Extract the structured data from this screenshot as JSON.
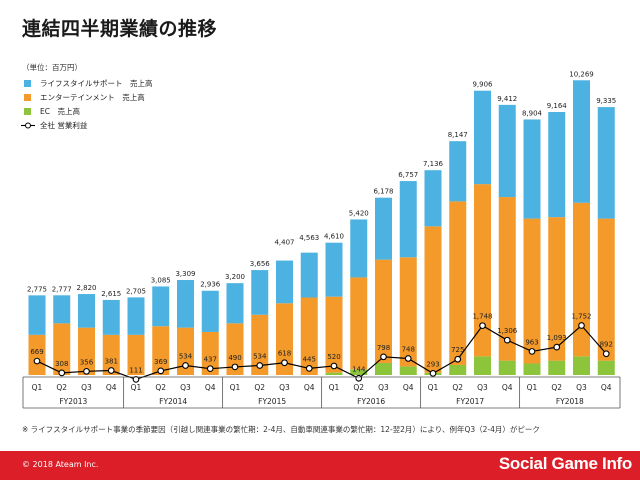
{
  "title": "連結四半期業績の推移",
  "footnote": "※ ライフスタイルサポート事業の季節要因（引越し関連事業の繁忙期：2-4月、自動車関連事業の繁忙期：12-翌2月）により、例年Q3（2-4月）がピーク",
  "copyright": "© 2018 Ateam Inc.",
  "watermark": "Social Game Info",
  "chart_data": {
    "type": "bar",
    "subtype": "stacked bar with line overlay",
    "unit_label": "（単位：百万円）",
    "categories": [
      "Q1",
      "Q2",
      "Q3",
      "Q4",
      "Q1",
      "Q2",
      "Q3",
      "Q4",
      "Q1",
      "Q2",
      "Q3",
      "Q4",
      "Q1",
      "Q2",
      "Q3",
      "Q4",
      "Q1",
      "Q2",
      "Q3",
      "Q4",
      "Q1",
      "Q2",
      "Q3",
      "Q4"
    ],
    "fiscal_years": [
      {
        "label": "FY2013",
        "start": 0,
        "count": 4
      },
      {
        "label": "FY2014",
        "start": 4,
        "count": 4
      },
      {
        "label": "FY2015",
        "start": 8,
        "count": 4
      },
      {
        "label": "FY2016",
        "start": 12,
        "count": 4
      },
      {
        "label": "FY2017",
        "start": 16,
        "count": 4
      },
      {
        "label": "FY2018",
        "start": 20,
        "count": 4
      }
    ],
    "totals": [
      2775,
      2777,
      2820,
      2615,
      2705,
      3085,
      3309,
      2936,
      3200,
      3656,
      4407,
      4563,
      4610,
      5420,
      6178,
      6757,
      7136,
      8147,
      9906,
      9412,
      8904,
      9164,
      10269,
      9335
    ],
    "total_labels": [
      "2,775",
      "2,777",
      "2,820",
      "2,615",
      "2,705",
      "3,085",
      "3,309",
      "2,936",
      "3,200",
      "3,656",
      "4,407",
      "4,563",
      "4,610",
      "5,420",
      "6,178",
      "6,757",
      "7,136",
      "8,147",
      "9,906",
      "9,412",
      "8,904",
      "9,164",
      "10,269",
      "9,335"
    ],
    "series": [
      {
        "name": "EC　売上高",
        "type": "bar",
        "color": "#8cc43c",
        "values": [
          0,
          0,
          0,
          0,
          0,
          0,
          0,
          0,
          0,
          0,
          0,
          0,
          80,
          200,
          420,
          300,
          80,
          350,
          650,
          500,
          400,
          500,
          650,
          500
        ]
      },
      {
        "name": "エンターテインメント　売上高",
        "type": "bar",
        "color": "#f39a2b",
        "values": [
          1400,
          1800,
          1650,
          1400,
          1400,
          1700,
          1650,
          1500,
          1800,
          2100,
          2500,
          2700,
          2650,
          3200,
          3600,
          3800,
          5100,
          5700,
          6000,
          5700,
          5050,
          5000,
          5350,
          4950
        ]
      },
      {
        "name": "ライフスタイルサポート　売上高",
        "type": "bar",
        "color": "#4bb2e2",
        "values": [
          1375,
          977,
          1170,
          1215,
          1305,
          1385,
          1659,
          1436,
          1400,
          1556,
          1487,
          1563,
          1880,
          2020,
          2158,
          2657,
          1956,
          2097,
          3256,
          3212,
          3454,
          3664,
          4269,
          3885
        ]
      },
      {
        "name": "全社 営業利益",
        "type": "line",
        "color": "#000000",
        "values": [
          669,
          308,
          356,
          381,
          111,
          369,
          534,
          437,
          490,
          534,
          618,
          445,
          520,
          144,
          798,
          748,
          293,
          725,
          1748,
          1306,
          963,
          1093,
          1752,
          892
        ],
        "value_labels": [
          "669",
          "308",
          "356",
          "381",
          "111",
          "369",
          "534",
          "437",
          "490",
          "534",
          "618",
          "445",
          "520",
          "144",
          "798",
          "748",
          "293",
          "725",
          "1,748",
          "1,306",
          "963",
          "1,093",
          "1,752",
          "892"
        ]
      }
    ],
    "legend_order": [
      "ライフスタイルサポート　売上高",
      "エンターテインメント　売上高",
      "EC　売上高",
      "全社 営業利益"
    ],
    "legend_position": "top-left",
    "ylim_bars": [
      0,
      10500
    ],
    "grid": false
  }
}
